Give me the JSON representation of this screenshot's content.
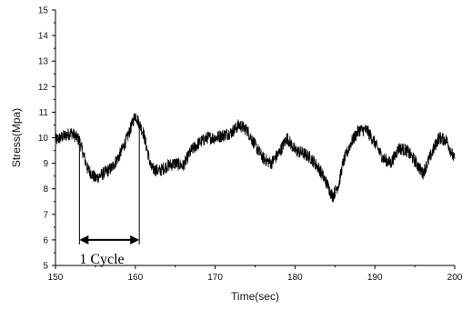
{
  "chart_data": {
    "type": "line",
    "title": "",
    "xlabel": "Time(sec)",
    "ylabel": "Stress(Mpa)",
    "xlim": [
      150,
      200
    ],
    "ylim": [
      5,
      15
    ],
    "xticks": [
      150,
      160,
      170,
      180,
      190,
      200
    ],
    "yticks": [
      5,
      6,
      7,
      8,
      9,
      10,
      11,
      12,
      13,
      14,
      15
    ],
    "grid": false,
    "legend": "none",
    "line_color": "#000000",
    "noise_amplitude": 0.25,
    "series": [
      {
        "x": [
          150,
          151,
          152,
          153,
          154,
          155,
          156,
          157,
          158,
          159,
          160,
          161,
          162,
          163,
          164,
          165,
          166,
          167,
          168,
          169,
          170,
          171,
          172,
          173,
          174,
          175,
          176,
          177,
          178,
          179,
          180,
          181,
          182,
          183,
          184,
          184.7,
          185.5,
          186,
          187,
          188,
          189,
          190,
          191,
          192,
          193,
          194,
          195,
          196,
          197,
          198,
          199,
          200
        ],
        "y": [
          9.9,
          10.05,
          10.2,
          9.9,
          8.8,
          8.4,
          8.6,
          8.8,
          9.3,
          10.0,
          10.9,
          10.2,
          8.8,
          8.7,
          8.9,
          9.0,
          8.9,
          9.5,
          9.8,
          10.0,
          10.0,
          10.1,
          10.2,
          10.5,
          10.3,
          9.7,
          9.2,
          9.0,
          9.4,
          10.0,
          9.5,
          9.4,
          9.2,
          8.8,
          8.2,
          7.7,
          8.2,
          9.0,
          9.8,
          10.3,
          10.3,
          9.8,
          9.2,
          9.0,
          9.6,
          9.5,
          9.1,
          8.6,
          9.3,
          10.0,
          9.9,
          9.1
        ]
      }
    ],
    "annotation": {
      "label": "1  Cycle",
      "x_start": 153,
      "x_end": 160.5,
      "y_arrow": 6.0
    }
  }
}
